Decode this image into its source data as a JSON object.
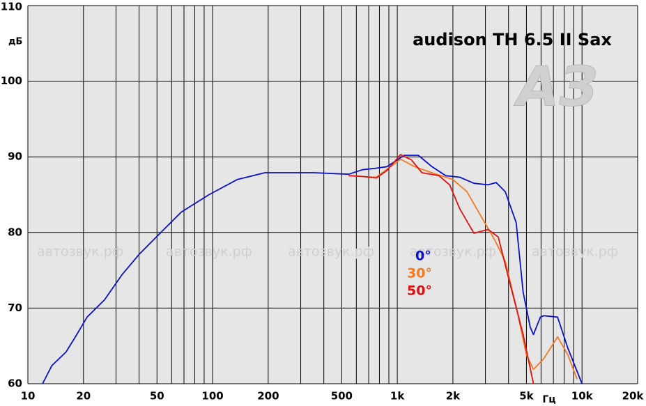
{
  "chart_data": {
    "type": "line",
    "title": "audison TH 6.5 II Sax",
    "y_label": "дБ",
    "x_label": "Гц",
    "watermark": "автозвук.рф",
    "logo": "АЗ",
    "xlog": true,
    "grid": true,
    "xlim": [
      10,
      20000
    ],
    "ylim": [
      60,
      110
    ],
    "yticks": [
      60,
      70,
      80,
      90,
      100,
      110
    ],
    "xticks": [
      10,
      20,
      50,
      100,
      200,
      500,
      {
        "value": 1000,
        "label": "1k"
      },
      {
        "value": 2000,
        "label": "2k"
      },
      {
        "value": 5000,
        "label": "5k"
      },
      {
        "value": 10000,
        "label": "10k"
      },
      {
        "value": 20000,
        "label": "20k"
      }
    ],
    "xgrid": [
      10,
      20,
      30,
      40,
      50,
      60,
      70,
      80,
      90,
      100,
      200,
      300,
      400,
      500,
      600,
      700,
      800,
      900,
      1000,
      2000,
      3000,
      4000,
      5000,
      6000,
      7000,
      8000,
      9000,
      10000,
      20000
    ],
    "series": [
      {
        "name": "0°",
        "color": "#0a10c8",
        "x": [
          12,
          13.5,
          16.1,
          18.4,
          20.9,
          26,
          32.3,
          40,
          52,
          67.7,
          95.7,
          136,
          192,
          353,
          545,
          648,
          770,
          880,
          1000,
          1090,
          1300,
          1540,
          1830,
          2180,
          2600,
          3100,
          3430,
          3840,
          4400,
          4800,
          5240,
          5460,
          5950,
          6200,
          7370,
          8380,
          10000
        ],
        "values": [
          60,
          62.4,
          64.2,
          66.5,
          68.8,
          71.1,
          74.4,
          77.1,
          79.9,
          82.7,
          85,
          87,
          87.9,
          87.9,
          87.7,
          88.3,
          88.5,
          88.7,
          89.6,
          90.2,
          90.2,
          88.7,
          87.5,
          87.3,
          86.5,
          86.3,
          86.6,
          85.4,
          81.3,
          72.1,
          67.5,
          66.5,
          68.8,
          69,
          68.8,
          64.7,
          60
        ]
      },
      {
        "name": "30°",
        "color": "#f07a20",
        "x": [
          545,
          770,
          920,
          1040,
          1240,
          1540,
          2000,
          2380,
          2830,
          3370,
          3840,
          4400,
          5000,
          5460,
          6200,
          7370,
          8380,
          9400
        ],
        "values": [
          87.5,
          87.3,
          88.7,
          89.7,
          88.7,
          87.9,
          87,
          85.4,
          82.2,
          79,
          76.2,
          70.2,
          63.8,
          61.9,
          63.3,
          66.2,
          63.8,
          60.6
        ]
      },
      {
        "name": "50°",
        "color": "#e01010",
        "x": [
          545,
          648,
          770,
          880,
          1040,
          1190,
          1360,
          1680,
          1920,
          2180,
          2600,
          3100,
          3520,
          4010,
          4800,
          5460
        ],
        "values": [
          87.5,
          87.4,
          87.2,
          88.2,
          90.3,
          89.6,
          87.9,
          87.5,
          86.3,
          83.1,
          79.9,
          80.4,
          79.4,
          73.9,
          66.5,
          60
        ]
      }
    ]
  }
}
